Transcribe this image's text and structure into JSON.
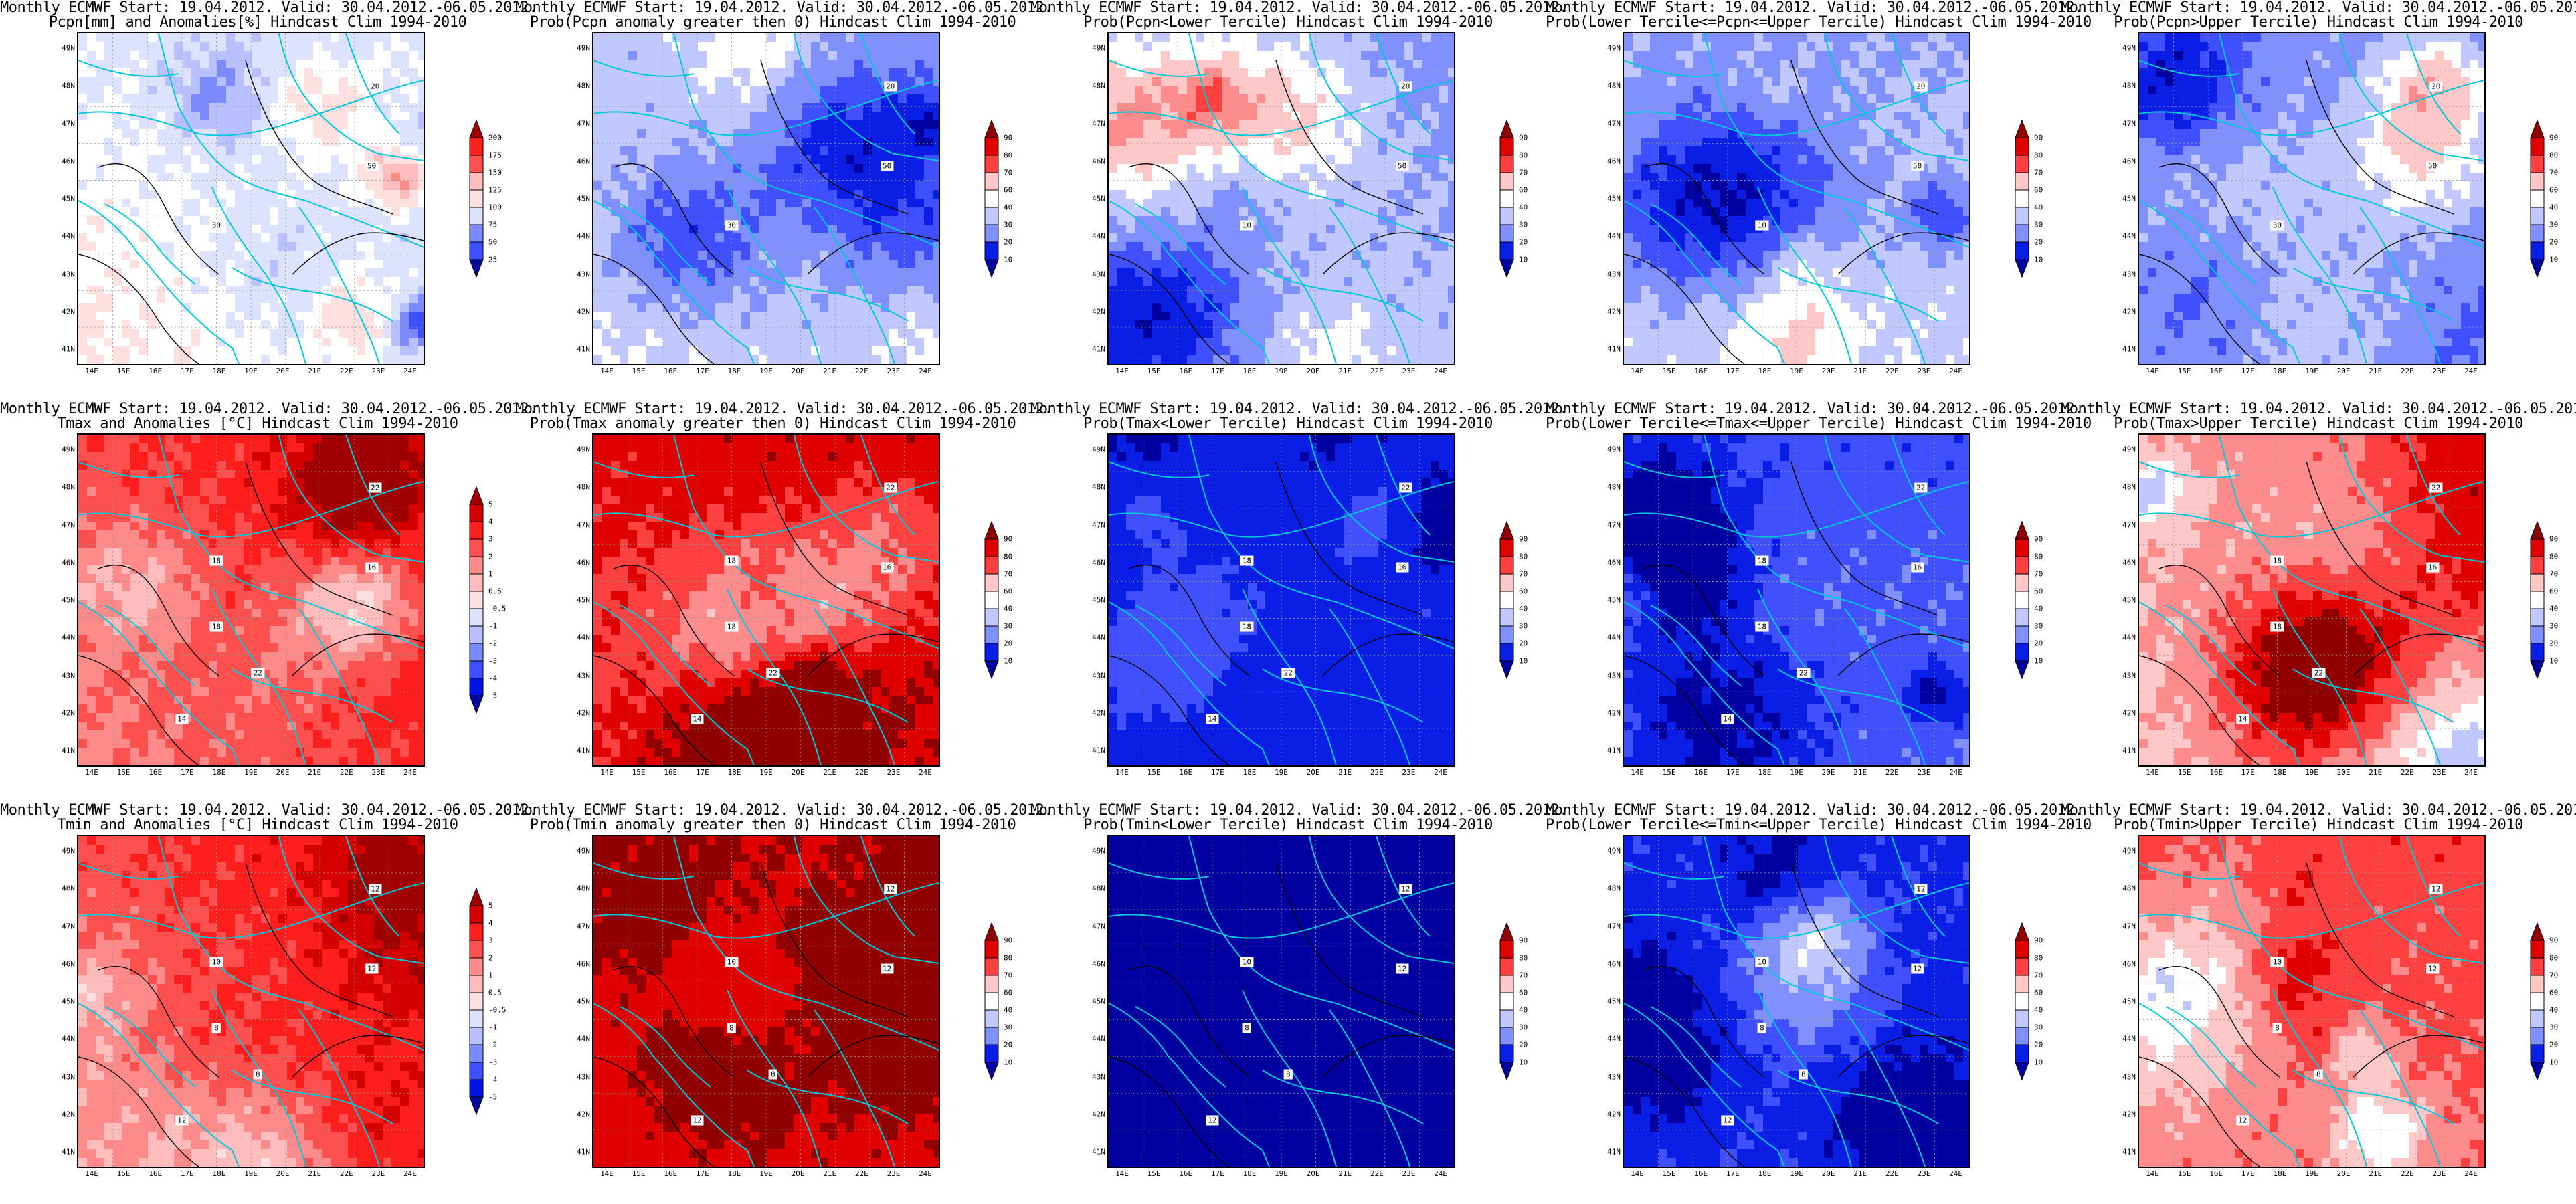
{
  "title_line1": "Monthly ECMWF Start: 19.04.2012. Valid: 30.04.2012.-06.05.2012.",
  "lat_labels": [
    "49N",
    "48N",
    "47N",
    "46N",
    "45N",
    "44N",
    "43N",
    "42N",
    "41N"
  ],
  "lon_labels": [
    "14E",
    "15E",
    "16E",
    "17E",
    "18E",
    "19E",
    "20E",
    "21E",
    "22E",
    "23E",
    "24E"
  ],
  "colors": {
    "anom_scale": [
      "#000a9c",
      "#0014e6",
      "#3c50ff",
      "#7c8aff",
      "#b8c0ff",
      "#dde2ff",
      "#ffffff",
      "#ffe0e0",
      "#ffbcbc",
      "#ff8a8a",
      "#ff5050",
      "#ff1e1e",
      "#d40000",
      "#a00000"
    ],
    "prob_scale": [
      "#0000a0",
      "#0a1ee6",
      "#4050ff",
      "#8090ff",
      "#c0c8ff",
      "#ffffff",
      "#ffc8c8",
      "#ff8c8c",
      "#ff4040",
      "#e00000",
      "#900000"
    ],
    "coast": "#00c8d8",
    "isoline": "#000000"
  },
  "rows": [
    {
      "panels": [
        {
          "title2": "Pcpn[mm] and Anomalies[%] Hindcast Clim 1994-2010",
          "scale": "pcpn",
          "pattern": "pcpn_anom",
          "box_labels": [
            "20",
            "30",
            "50"
          ]
        },
        {
          "title2": "Prob(Pcpn anomaly greater then 0) Hindcast Clim 1994-2010",
          "scale": "prob",
          "pattern": "pcpn_p0",
          "box_labels": [
            "20",
            "30",
            "50"
          ]
        },
        {
          "title2": "Prob(Pcpn<Lower Tercile) Hindcast Clim 1994-2010",
          "scale": "prob",
          "pattern": "pcpn_low",
          "box_labels": [
            "20",
            "10",
            "50"
          ]
        },
        {
          "title2": "Prob(Lower Tercile<=Pcpn<=Upper Tercile) Hindcast Clim 1994-2010",
          "scale": "prob",
          "pattern": "pcpn_mid",
          "box_labels": [
            "20",
            "10",
            "50"
          ]
        },
        {
          "title2": "Prob(Pcpn>Upper Tercile) Hindcast Clim 1994-2010",
          "scale": "prob",
          "pattern": "pcpn_up",
          "box_labels": [
            "20",
            "30",
            "50"
          ]
        }
      ]
    },
    {
      "panels": [
        {
          "title2": "Tmax and Anomalies [°C] Hindcast Clim 1994-2010",
          "scale": "temp",
          "pattern": "tmax_anom",
          "box_labels": [
            "22",
            "18",
            "16",
            "22",
            "18",
            "14"
          ]
        },
        {
          "title2": "Prob(Tmax anomaly greater then 0) Hindcast Clim 1994-2010",
          "scale": "prob",
          "pattern": "tmax_p0",
          "box_labels": [
            "22",
            "18",
            "16",
            "22",
            "18",
            "14"
          ]
        },
        {
          "title2": "Prob(Tmax<Lower Tercile) Hindcast Clim 1994-2010",
          "scale": "prob",
          "pattern": "tmax_low",
          "box_labels": [
            "22",
            "18",
            "16",
            "22",
            "18",
            "14"
          ]
        },
        {
          "title2": "Prob(Lower Tercile<=Tmax<=Upper Tercile) Hindcast Clim 1994-2010",
          "scale": "prob",
          "pattern": "tmax_mid",
          "box_labels": [
            "22",
            "18",
            "16",
            "22",
            "18",
            "14"
          ]
        },
        {
          "title2": "Prob(Tmax>Upper Tercile) Hindcast Clim 1994-2010",
          "scale": "prob",
          "pattern": "tmax_up",
          "box_labels": [
            "22",
            "18",
            "16",
            "22",
            "18",
            "14"
          ]
        }
      ]
    },
    {
      "panels": [
        {
          "title2": "Tmin and Anomalies [°C] Hindcast Clim 1994-2010",
          "scale": "temp",
          "pattern": "tmin_anom",
          "box_labels": [
            "12",
            "8",
            "12",
            "8",
            "10",
            "12"
          ]
        },
        {
          "title2": "Prob(Tmin anomaly greater then 0) Hindcast Clim 1994-2010",
          "scale": "prob",
          "pattern": "tmin_p0",
          "box_labels": [
            "12",
            "8",
            "12",
            "8",
            "10",
            "12"
          ]
        },
        {
          "title2": "Prob(Tmin<Lower Tercile) Hindcast Clim 1994-2010",
          "scale": "prob",
          "pattern": "tmin_low",
          "box_labels": [
            "12",
            "8",
            "12",
            "8",
            "10",
            "12"
          ]
        },
        {
          "title2": "Prob(Lower Tercile<=Tmin<=Upper Tercile) Hindcast Clim 1994-2010",
          "scale": "prob",
          "pattern": "tmin_mid",
          "box_labels": [
            "12",
            "8",
            "12",
            "8",
            "10",
            "12"
          ]
        },
        {
          "title2": "Prob(Tmin>Upper Tercile) Hindcast Clim 1994-2010",
          "scale": "prob",
          "pattern": "tmin_up",
          "box_labels": [
            "12",
            "8",
            "12",
            "8",
            "10",
            "12"
          ]
        }
      ]
    }
  ],
  "colorbars": {
    "pcpn": {
      "labels": [
        "200",
        "175",
        "150",
        "125",
        "100",
        "75",
        "50",
        "25"
      ]
    },
    "temp": {
      "labels": [
        "5",
        "4",
        "3",
        "2",
        "1",
        "0.5",
        "-0.5",
        "-1",
        "-2",
        "-3",
        "-4",
        "-5"
      ]
    },
    "prob": {
      "labels": [
        "90",
        "80",
        "70",
        "60",
        "40",
        "30",
        "20",
        "10"
      ]
    }
  }
}
